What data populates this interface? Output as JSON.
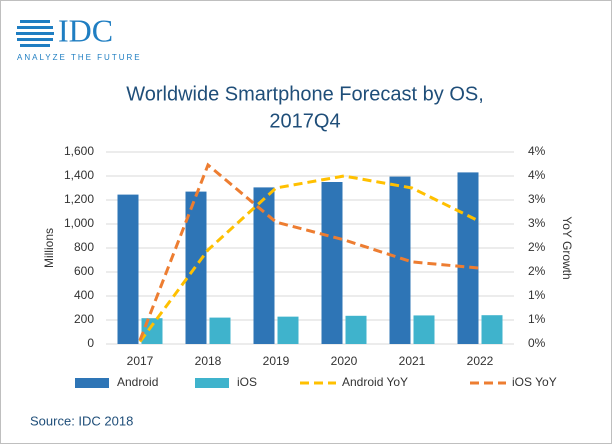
{
  "logo": {
    "name": "IDC",
    "tagline": "ANALYZE THE FUTURE"
  },
  "source": "Source: IDC 2018",
  "chart_data": {
    "type": "bar-line",
    "title": [
      "Worldwide Smartphone Forecast by OS,",
      "2017Q4"
    ],
    "y_label": "Millions",
    "y2_label": "YoY Growth",
    "categories": [
      "2017",
      "2018",
      "2019",
      "2020",
      "2021",
      "2022"
    ],
    "series": [
      {
        "name": "Android",
        "type": "bar",
        "color": "#2e75b6",
        "values": [
          1245,
          1270,
          1305,
          1350,
          1395,
          1430
        ]
      },
      {
        "name": "iOS",
        "type": "bar",
        "color": "#3fb3cc",
        "values": [
          215,
          220,
          228,
          235,
          238,
          240
        ]
      },
      {
        "name": "Android YoY",
        "type": "line",
        "axis": "y2",
        "color": "#ffc000",
        "values": [
          0.05,
          1.96,
          3.25,
          3.5,
          3.25,
          2.55
        ]
      },
      {
        "name": "iOS YoY",
        "type": "line",
        "axis": "y2",
        "color": "#ed7d31",
        "values": [
          0.08,
          3.73,
          2.54,
          2.17,
          1.71,
          1.58
        ]
      }
    ],
    "ylim": [
      0,
      1600
    ],
    "yticks": [
      0,
      200,
      400,
      600,
      800,
      {
        "value": 1000,
        "label": "1,000"
      },
      {
        "value": 1200,
        "label": "1,200"
      },
      {
        "value": 1400,
        "label": "1,400"
      },
      {
        "value": 1600,
        "label": "1,600"
      }
    ],
    "y2lim": [
      0,
      4
    ],
    "y2ticks": [
      {
        "value": 0,
        "label": "0%"
      },
      {
        "value": 0.5,
        "label": "1%"
      },
      {
        "value": 1,
        "label": "1%"
      },
      {
        "value": 1.5,
        "label": "2%"
      },
      {
        "value": 2,
        "label": "2%"
      },
      {
        "value": 2.5,
        "label": "3%"
      },
      {
        "value": 3,
        "label": "3%"
      },
      {
        "value": 3.5,
        "label": "4%"
      },
      {
        "value": 4,
        "label": "4%"
      }
    ],
    "grid": true,
    "legend": "bottom"
  }
}
